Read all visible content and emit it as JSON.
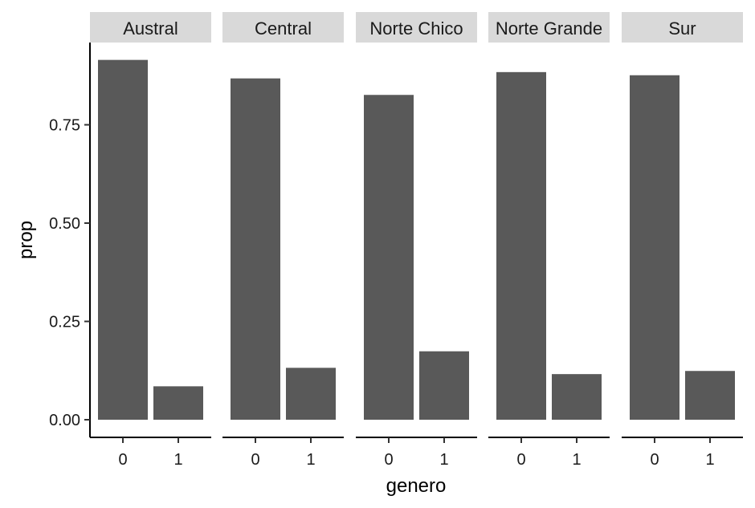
{
  "chart_data": {
    "type": "bar",
    "facet_var": "",
    "xlabel": "genero",
    "ylabel": "prop",
    "ylim": [
      0,
      0.92
    ],
    "y_ticks": [
      0.0,
      0.25,
      0.5,
      0.75
    ],
    "y_tick_labels": [
      "0.00",
      "0.25",
      "0.50",
      "0.75"
    ],
    "categories": [
      "0",
      "1"
    ],
    "bar_color": "#595959",
    "strip_color": "#d9d9d9",
    "grid": false,
    "legend": "none",
    "facets": [
      {
        "label": "Austral",
        "values": [
          0.915,
          0.085
        ]
      },
      {
        "label": "Central",
        "values": [
          0.868,
          0.132
        ]
      },
      {
        "label": "Norte Chico",
        "values": [
          0.826,
          0.174
        ]
      },
      {
        "label": "Norte Grande",
        "values": [
          0.884,
          0.116
        ]
      },
      {
        "label": "Sur",
        "values": [
          0.876,
          0.124
        ]
      }
    ]
  }
}
